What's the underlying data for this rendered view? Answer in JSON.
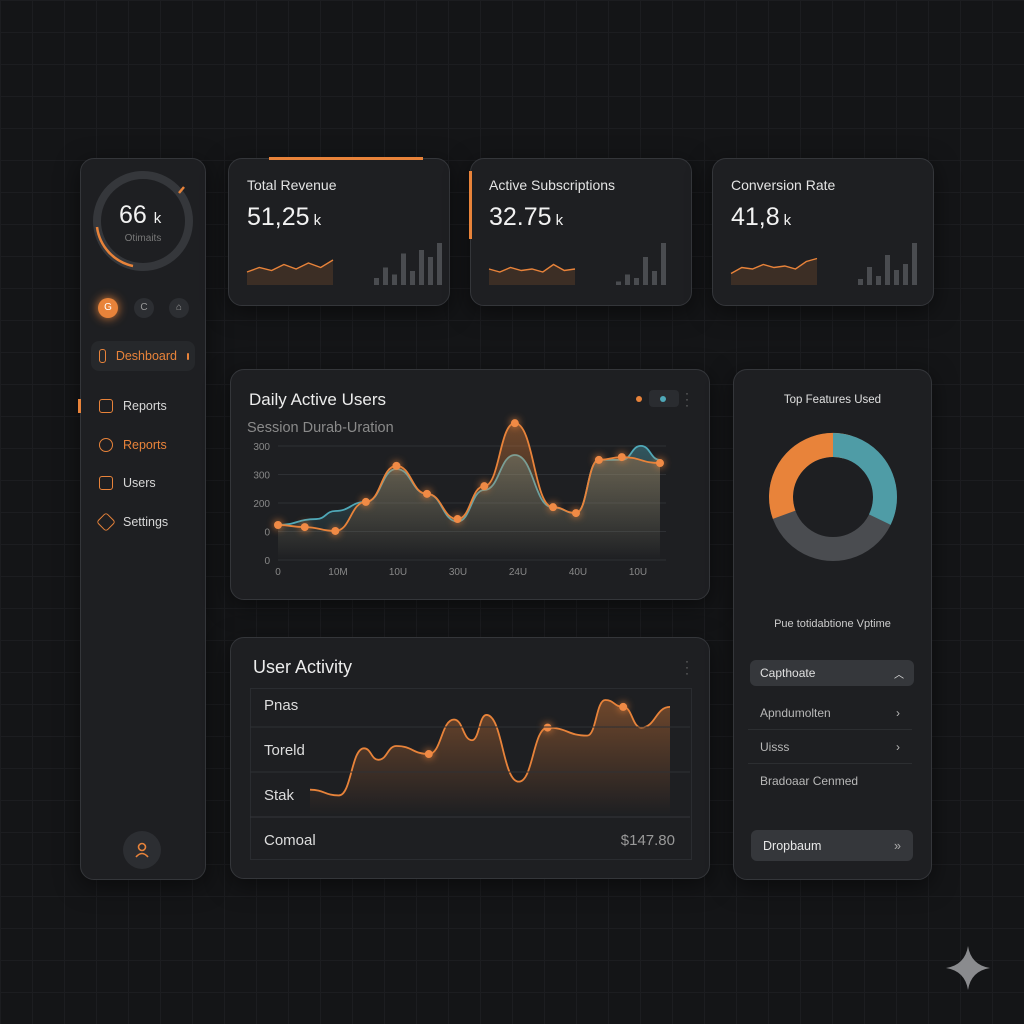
{
  "colors": {
    "accent": "#e8833a",
    "teal": "#4fa8b8",
    "bg": "#141517"
  },
  "sidebar": {
    "gauge_value": "66",
    "gauge_unit": "k",
    "gauge_label": "Otimaits",
    "avatars": [
      "G",
      "C",
      "⌂"
    ],
    "items": [
      {
        "label": "Deshboard",
        "icon": "home-icon"
      },
      {
        "label": "Reports",
        "icon": "report-icon"
      },
      {
        "label": "Reports",
        "icon": "chart-icon"
      },
      {
        "label": "Users",
        "icon": "users-icon"
      },
      {
        "label": "Settings",
        "icon": "settings-icon"
      }
    ],
    "profile_icon": "user-icon"
  },
  "kpis": [
    {
      "title": "Total Revenue",
      "value": "51,25",
      "unit": "k",
      "spark": [
        30,
        45,
        35,
        55,
        40,
        60,
        45,
        70
      ],
      "bars": [
        2,
        5,
        3,
        9,
        4,
        10,
        8,
        12
      ]
    },
    {
      "title": "Active Subscriptions",
      "value": "32.75",
      "unit": "k",
      "spark": [
        40,
        30,
        45,
        35,
        40,
        30,
        55,
        35,
        40
      ],
      "bars": [
        1,
        3,
        2,
        8,
        4,
        12
      ]
    },
    {
      "title": "Conversion Rate",
      "value": "41,8",
      "unit": "k",
      "spark": [
        25,
        45,
        40,
        55,
        45,
        50,
        40,
        65,
        75
      ],
      "bars": [
        2,
        6,
        3,
        10,
        5,
        7,
        14
      ]
    }
  ],
  "dau": {
    "title": "Daily Active Users",
    "subtitle": "Session Durab-Uration",
    "y_ticks": [
      "300",
      "300",
      "200",
      "0",
      "0"
    ],
    "x_ticks": [
      "0",
      "10M",
      "10U",
      "30U",
      "24U",
      "40U",
      "10U"
    ]
  },
  "activity": {
    "title": "User Activity",
    "rows": [
      "Pnas",
      "Toreld",
      "Stak"
    ],
    "footer_label": "Comoal",
    "footer_value": "$147.80"
  },
  "features": {
    "title": "Top Features Used",
    "subtitle": "Pue totidabtione Vptime",
    "select": "Capthoate",
    "items": [
      "Apndumolten",
      "Uisss",
      "Bradoaar Cenmed"
    ],
    "button": "Dropbaum"
  },
  "chart_data": [
    {
      "type": "area",
      "title": "Daily Active Users",
      "subtitle": "Session Durab-Uration",
      "ylim": [
        0,
        400
      ],
      "xlim": [
        0,
        100
      ],
      "series": [
        {
          "name": "orange",
          "color": "#e8833a",
          "x": [
            0,
            7,
            15,
            23,
            31,
            39,
            47,
            54,
            62,
            72,
            78,
            84,
            90,
            100
          ],
          "values": [
            100,
            94,
            83,
            166,
            269,
            189,
            117,
            211,
            391,
            151,
            134,
            286,
            294,
            277
          ],
          "markers": true
        },
        {
          "name": "teal",
          "color": "#4fa8b8",
          "x": [
            0,
            10,
            15,
            23,
            31,
            39,
            47,
            54,
            62,
            72,
            78,
            84,
            90,
            95,
            100
          ],
          "values": [
            100,
            117,
            140,
            166,
            260,
            189,
            110,
            200,
            300,
            150,
            134,
            286,
            286,
            326,
            286
          ],
          "markers": false
        }
      ]
    },
    {
      "type": "area",
      "title": "User Activity",
      "ylim": [
        0,
        100
      ],
      "xlim": [
        0,
        100
      ],
      "series": [
        {
          "name": "orange",
          "color": "#e8833a",
          "x": [
            0,
            8,
            15,
            19,
            24,
            33,
            40,
            45,
            49,
            58,
            66,
            77,
            82,
            87,
            92,
            100
          ],
          "values": [
            22,
            17,
            58,
            48,
            60,
            53,
            83,
            65,
            87,
            29,
            76,
            69,
            100,
            94,
            76,
            94
          ],
          "markers_at": [
            5,
            10,
            13
          ]
        }
      ]
    }
  ]
}
